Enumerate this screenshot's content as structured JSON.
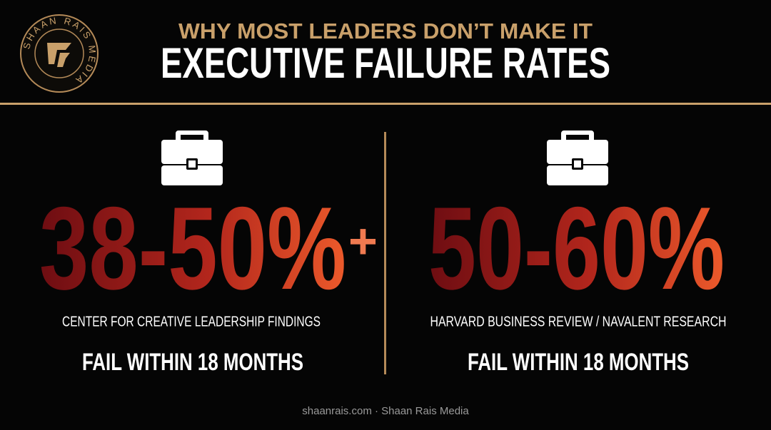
{
  "logo": {
    "text": "SHAAN RAIS MEDIA"
  },
  "header": {
    "kicker": "WHY MOST LEADERS DON’T MAKE IT",
    "title": "EXECUTIVE FAILURE RATES"
  },
  "panels": [
    {
      "stat": "38-50%",
      "suffix": "+",
      "source": "CENTER FOR CREATIVE LEADERSHIP FINDINGS",
      "caption": "FAIL WITHIN 18 MONTHS"
    },
    {
      "stat": "50-60%",
      "source": "HARVARD BUSINESS REVIEW / NAVALENT RESEARCH",
      "caption": "FAIL WITHIN 18 MONTHS"
    }
  ],
  "footer": "shaanrais.com · Shaan Rais Media"
}
